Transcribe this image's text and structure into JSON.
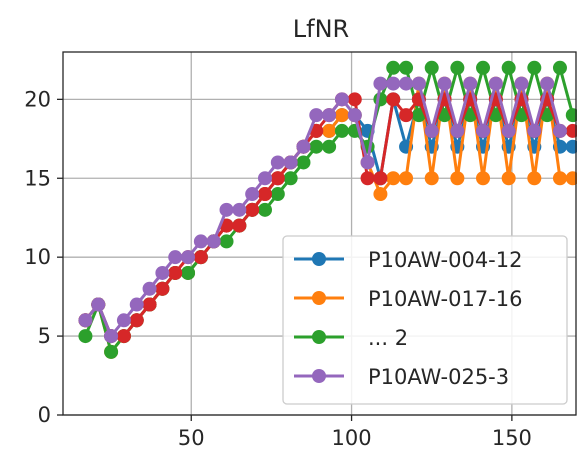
{
  "chart_data": {
    "type": "line",
    "title": "LfNR",
    "xlabel": "",
    "ylabel": "",
    "xlim": [
      10,
      170
    ],
    "ylim": [
      0,
      23
    ],
    "xticks": [
      50,
      100,
      150
    ],
    "yticks": [
      0,
      5,
      10,
      15,
      20
    ],
    "grid": true,
    "legend_position": "lower-right",
    "series": [
      {
        "name": "P10AW-004-12",
        "color": "#1f77b4",
        "x": [
          17,
          21,
          25,
          29,
          33,
          37,
          41,
          45,
          49,
          53,
          57,
          61,
          65,
          69,
          73,
          77,
          81,
          85,
          89,
          93,
          97,
          101,
          105,
          109,
          113,
          117,
          121,
          125,
          129,
          133,
          137,
          141,
          145,
          149,
          153,
          157,
          161,
          165,
          169
        ],
        "y": [
          6,
          7,
          5,
          5,
          6,
          7,
          8,
          9,
          9,
          10,
          11,
          12,
          12,
          13,
          14,
          15,
          16,
          17,
          18,
          18,
          19,
          19,
          18,
          15,
          20,
          17,
          20,
          17,
          20,
          17,
          20,
          17,
          20,
          17,
          20,
          17,
          20,
          17,
          17
        ]
      },
      {
        "name": "P10AW-017-16",
        "color": "#ff7f0e",
        "x": [
          17,
          21,
          25,
          29,
          33,
          37,
          41,
          45,
          49,
          53,
          57,
          61,
          65,
          69,
          73,
          77,
          81,
          85,
          89,
          93,
          97,
          101,
          105,
          109,
          113,
          117,
          121,
          125,
          129,
          133,
          137,
          141,
          145,
          149,
          153,
          157,
          161,
          165,
          169
        ],
        "y": [
          6,
          7,
          4,
          5,
          6,
          7,
          8,
          9,
          9,
          10,
          11,
          12,
          12,
          13,
          14,
          15,
          16,
          17,
          18,
          18,
          19,
          19,
          16,
          14,
          15,
          15,
          21,
          15,
          21,
          15,
          21,
          15,
          21,
          15,
          21,
          15,
          21,
          15,
          15
        ]
      },
      {
        "name": "... 2",
        "color": "#2ca02c",
        "x": [
          17,
          21,
          25,
          29,
          33,
          37,
          41,
          45,
          49,
          53,
          57,
          61,
          65,
          69,
          73,
          77,
          81,
          85,
          89,
          93,
          97,
          101,
          105,
          109,
          113,
          117,
          121,
          125,
          129,
          133,
          137,
          141,
          145,
          149,
          153,
          157,
          161,
          165,
          169
        ],
        "y": [
          5,
          7,
          4,
          5,
          6,
          7,
          8,
          9,
          9,
          10,
          11,
          11,
          12,
          13,
          13,
          14,
          15,
          16,
          17,
          17,
          18,
          18,
          17,
          20,
          22,
          22,
          19,
          22,
          19,
          22,
          19,
          22,
          19,
          22,
          19,
          22,
          19,
          22,
          19
        ]
      },
      {
        "name": "",
        "color": "#d62728",
        "x": [
          17,
          21,
          25,
          29,
          33,
          37,
          41,
          45,
          49,
          53,
          57,
          61,
          65,
          69,
          73,
          77,
          81,
          85,
          89,
          93,
          97,
          101,
          105,
          109,
          113,
          117,
          121,
          125,
          129,
          133,
          137,
          141,
          145,
          149,
          153,
          157,
          161,
          165,
          169
        ],
        "y": [
          6,
          7,
          5,
          5,
          6,
          7,
          8,
          9,
          10,
          10,
          11,
          12,
          12,
          13,
          14,
          15,
          16,
          17,
          18,
          19,
          20,
          20,
          15,
          15,
          20,
          19,
          20,
          18,
          20,
          18,
          20,
          18,
          20,
          18,
          20,
          18,
          20,
          18,
          18
        ]
      },
      {
        "name": "P10AW-025-3",
        "color": "#9467bd",
        "x": [
          17,
          21,
          25,
          29,
          33,
          37,
          41,
          45,
          49,
          53,
          57,
          61,
          65,
          69,
          73,
          77,
          81,
          85,
          89,
          93,
          97,
          101,
          105,
          109,
          113,
          117,
          121,
          125,
          129,
          133,
          137,
          141,
          145,
          149,
          153,
          157,
          161,
          165
        ],
        "y": [
          6,
          7,
          5,
          6,
          7,
          8,
          9,
          10,
          10,
          11,
          11,
          13,
          13,
          14,
          15,
          16,
          16,
          17,
          19,
          19,
          20,
          19,
          16,
          21,
          21,
          21,
          21,
          18,
          21,
          18,
          21,
          18,
          21,
          18,
          21,
          18,
          21,
          18
        ]
      }
    ],
    "legend": [
      "P10AW-004-12",
      "P10AW-017-16",
      "... 2",
      "P10AW-025-3"
    ]
  }
}
